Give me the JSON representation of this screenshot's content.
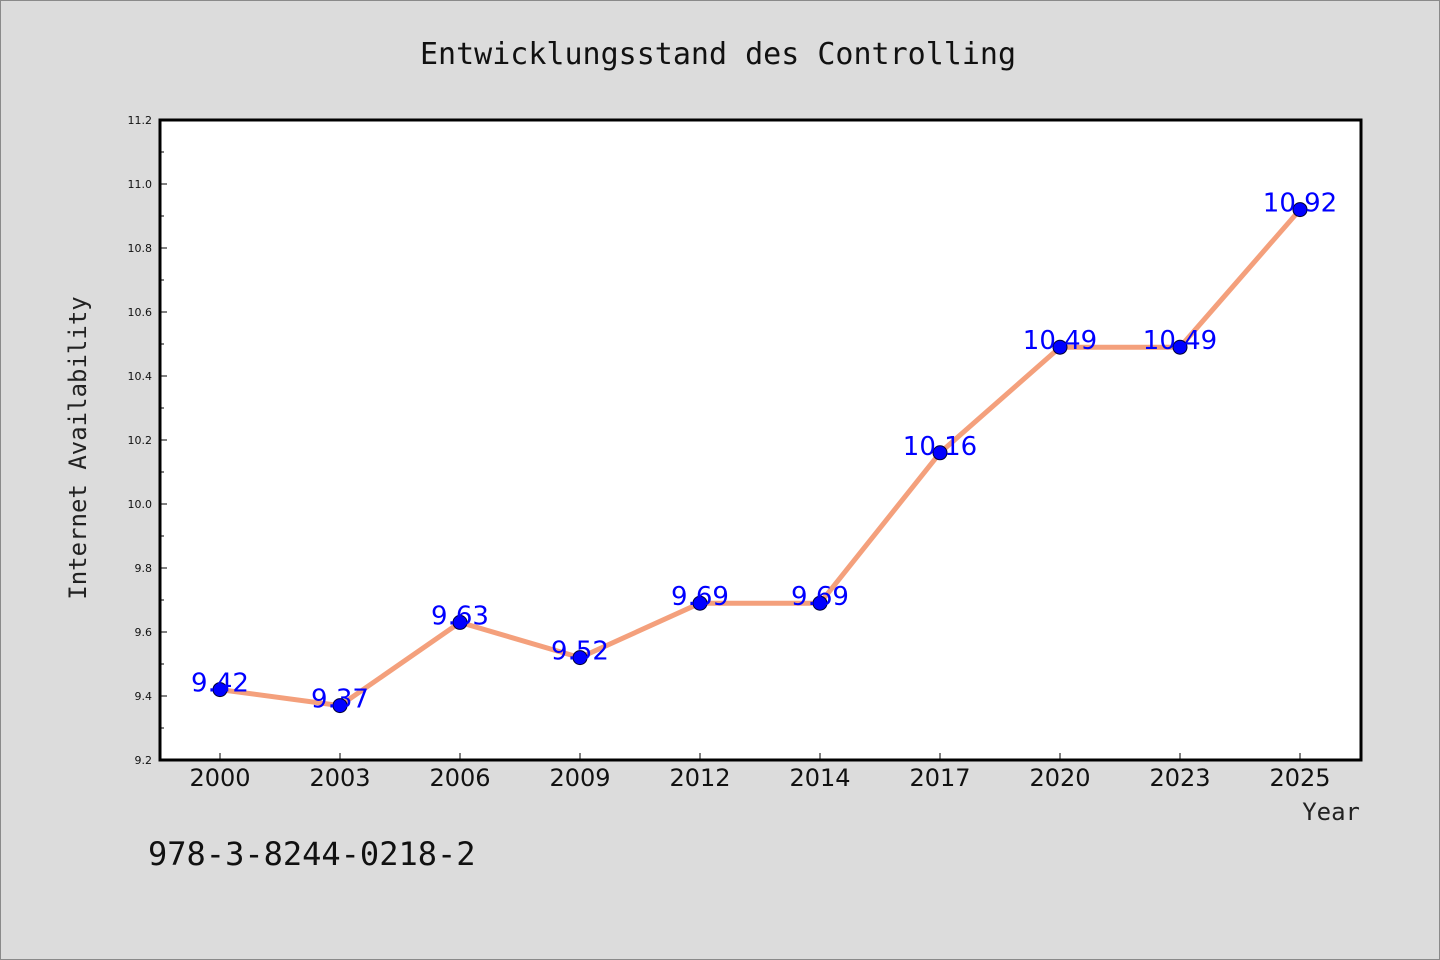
{
  "chart_data": {
    "type": "line",
    "title": "Entwicklungsstand des Controlling",
    "xlabel": "Year",
    "ylabel": "Internet Availability",
    "categories": [
      "2000",
      "2003",
      "2006",
      "2009",
      "2012",
      "2014",
      "2017",
      "2020",
      "2023",
      "2025"
    ],
    "series": [
      {
        "values": [
          9.42,
          9.37,
          9.63,
          9.52,
          9.69,
          9.69,
          10.16,
          10.49,
          10.49,
          10.92
        ],
        "data_labels": [
          "9.42",
          "9.37",
          "9.63",
          "9.52",
          "9.69",
          "9.69",
          "10.16",
          "10.49",
          "10.49",
          "10.92"
        ],
        "line_color": "#f4a07c",
        "marker_color": "#0000ff"
      }
    ],
    "ylim": [
      9.2,
      11.2
    ],
    "yticks": [
      "9.2",
      "9.4",
      "9.6",
      "9.8",
      "10.0",
      "10.2",
      "10.4",
      "10.6",
      "10.8",
      "11.0",
      "11.2"
    ],
    "grid": false,
    "legend": "none"
  },
  "footnote": "978-3-8244-0218-2",
  "colors": {
    "background": "#dcdcdc",
    "plot_background": "#ffffff",
    "line": "#f4a07c",
    "marker": "#0000ff",
    "data_label": "#0000ff"
  }
}
